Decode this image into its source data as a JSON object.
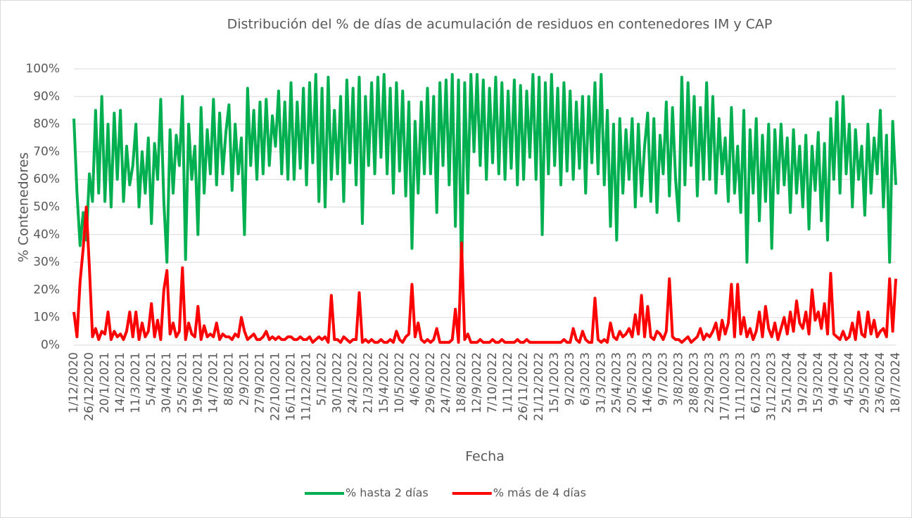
{
  "chart_data": {
    "type": "line",
    "title": "Distribución del % de días de acumulación de residuos en contenedores IM y CAP",
    "x_label": "Fecha",
    "y_label": "% Contenedores",
    "categories": [
      "1/12/2020",
      null,
      null,
      null,
      null,
      "26/12/2020",
      null,
      null,
      null,
      null,
      "20/1/2021",
      null,
      null,
      null,
      null,
      "14/2/2021",
      null,
      null,
      null,
      null,
      "11/3/2021",
      null,
      null,
      null,
      null,
      "5/4/2021",
      null,
      null,
      null,
      null,
      "30/4/2021",
      null,
      null,
      null,
      null,
      "25/5/2021",
      null,
      null,
      null,
      null,
      "19/6/2021",
      null,
      null,
      null,
      null,
      "14/7/2021",
      null,
      null,
      null,
      null,
      "8/8/2021",
      null,
      null,
      null,
      null,
      "2/9/2021",
      null,
      null,
      null,
      null,
      "27/9/2021",
      null,
      null,
      null,
      null,
      "22/10/2021",
      null,
      null,
      null,
      null,
      "16/11/2021",
      null,
      null,
      null,
      null,
      "11/12/2021",
      null,
      null,
      null,
      null,
      "5/1/2022",
      null,
      null,
      null,
      null,
      "30/1/2022",
      null,
      null,
      null,
      null,
      "24/2/2022",
      null,
      null,
      null,
      null,
      "21/3/2022",
      null,
      null,
      null,
      null,
      "15/4/2022",
      null,
      null,
      null,
      null,
      "10/5/2022",
      null,
      null,
      null,
      null,
      "4/6/2022",
      null,
      null,
      null,
      null,
      "29/6/2022",
      null,
      null,
      null,
      null,
      "24/7/2022",
      null,
      null,
      null,
      null,
      "18/8/2022",
      null,
      null,
      null,
      null,
      "12/9/2022",
      null,
      null,
      null,
      null,
      "7/10/2022",
      null,
      null,
      null,
      null,
      "1/11/2022",
      null,
      null,
      null,
      null,
      "26/11/2022",
      null,
      null,
      null,
      null,
      "21/12/2022",
      null,
      null,
      null,
      null,
      "15/1/2023",
      null,
      null,
      null,
      null,
      "9/2/2023",
      null,
      null,
      null,
      null,
      "6/3/2023",
      null,
      null,
      null,
      null,
      "31/3/2023",
      null,
      null,
      null,
      null,
      "25/4/2023",
      null,
      null,
      null,
      null,
      "20/5/2023",
      null,
      null,
      null,
      null,
      "14/6/2023",
      null,
      null,
      null,
      null,
      "9/7/2023",
      null,
      null,
      null,
      null,
      "3/8/2023",
      null,
      null,
      null,
      null,
      "28/8/2023",
      null,
      null,
      null,
      null,
      "22/9/2023",
      null,
      null,
      null,
      null,
      "17/10/2023",
      null,
      null,
      null,
      null,
      "11/11/2023",
      null,
      null,
      null,
      null,
      "6/12/2023",
      null,
      null,
      null,
      null,
      "31/12/2023",
      null,
      null,
      null,
      null,
      "25/1/2024",
      null,
      null,
      null,
      null,
      "19/2/2024",
      null,
      null,
      null,
      null,
      "15/3/2024",
      null,
      null,
      null,
      null,
      "9/4/2024",
      null,
      null,
      null,
      null,
      "4/5/2024",
      null,
      null,
      null,
      null,
      "29/5/2024",
      null,
      null,
      null,
      null,
      "23/6/2024",
      null,
      null,
      null,
      null,
      "18/7/2024"
    ],
    "series": [
      {
        "name": "% hasta 2 días",
        "color": "#00b050",
        "values": [
          82,
          55,
          36,
          48,
          38,
          62,
          52,
          85,
          55,
          90,
          52,
          80,
          50,
          84,
          60,
          85,
          52,
          72,
          58,
          65,
          80,
          50,
          70,
          55,
          75,
          44,
          73,
          60,
          89,
          52,
          30,
          78,
          55,
          76,
          65,
          90,
          31,
          80,
          60,
          72,
          40,
          86,
          55,
          78,
          62,
          89,
          58,
          84,
          62,
          77,
          87,
          56,
          80,
          62,
          75,
          40,
          93,
          65,
          85,
          60,
          88,
          62,
          89,
          65,
          83,
          72,
          92,
          62,
          88,
          60,
          95,
          60,
          88,
          64,
          93,
          58,
          95,
          66,
          98,
          52,
          93,
          50,
          97,
          60,
          85,
          62,
          90,
          52,
          96,
          66,
          93,
          58,
          97,
          44,
          90,
          65,
          95,
          62,
          97,
          68,
          98,
          62,
          93,
          55,
          95,
          63,
          92,
          54,
          88,
          35,
          81,
          55,
          88,
          62,
          93,
          62,
          90,
          48,
          95,
          65,
          96,
          58,
          98,
          43,
          96,
          23,
          95,
          55,
          98,
          70,
          98,
          65,
          96,
          60,
          93,
          66,
          97,
          62,
          95,
          60,
          92,
          64,
          96,
          58,
          94,
          60,
          92,
          68,
          98,
          60,
          97,
          40,
          95,
          62,
          98,
          65,
          93,
          58,
          95,
          63,
          92,
          60,
          88,
          64,
          90,
          55,
          90,
          66,
          95,
          62,
          98,
          58,
          85,
          43,
          80,
          38,
          82,
          55,
          78,
          60,
          82,
          50,
          80,
          54,
          72,
          84,
          52,
          82,
          48,
          76,
          62,
          88,
          54,
          86,
          60,
          45,
          97,
          58,
          95,
          65,
          90,
          54,
          86,
          60,
          95,
          60,
          90,
          55,
          82,
          62,
          75,
          52,
          86,
          55,
          72,
          48,
          85,
          30,
          78,
          55,
          82,
          45,
          76,
          52,
          80,
          35,
          78,
          55,
          80,
          58,
          75,
          48,
          78,
          55,
          72,
          50,
          76,
          42,
          72,
          56,
          77,
          45,
          73,
          38,
          82,
          60,
          88,
          55,
          90,
          62,
          80,
          50,
          78,
          60,
          72,
          47,
          80,
          55,
          75,
          62,
          85,
          50,
          76,
          30,
          81,
          58
        ]
      },
      {
        "name": "% más de 4 días",
        "color": "#ff0000",
        "values": [
          12,
          3,
          23,
          35,
          50,
          28,
          3,
          6,
          2,
          5,
          4,
          12,
          2,
          5,
          3,
          4,
          2,
          5,
          12,
          3,
          12,
          2,
          8,
          3,
          5,
          15,
          3,
          9,
          2,
          20,
          27,
          4,
          8,
          3,
          5,
          28,
          2,
          8,
          4,
          3,
          14,
          2,
          7,
          3,
          4,
          3,
          8,
          2,
          4,
          3,
          3,
          2,
          4,
          3,
          10,
          5,
          2,
          3,
          4,
          2,
          2,
          3,
          5,
          2,
          3,
          2,
          3,
          2,
          2,
          3,
          3,
          2,
          2,
          3,
          2,
          2,
          3,
          1,
          2,
          3,
          2,
          3,
          1,
          18,
          2,
          2,
          1,
          3,
          2,
          1,
          2,
          2,
          19,
          1,
          2,
          1,
          2,
          1,
          1,
          2,
          1,
          1,
          2,
          1,
          5,
          2,
          1,
          3,
          4,
          22,
          3,
          8,
          2,
          1,
          2,
          1,
          2,
          6,
          1,
          1,
          1,
          1,
          2,
          13,
          1,
          37,
          2,
          4,
          1,
          1,
          1,
          2,
          1,
          1,
          1,
          2,
          1,
          1,
          2,
          1,
          1,
          1,
          1,
          2,
          1,
          1,
          2,
          1,
          1,
          1,
          1,
          1,
          1,
          1,
          1,
          1,
          1,
          1,
          2,
          1,
          1,
          6,
          2,
          1,
          5,
          2,
          1,
          1,
          17,
          2,
          1,
          2,
          1,
          8,
          3,
          2,
          5,
          3,
          4,
          6,
          3,
          11,
          4,
          18,
          3,
          14,
          3,
          2,
          5,
          4,
          2,
          5,
          24,
          3,
          2,
          2,
          1,
          2,
          3,
          1,
          2,
          3,
          6,
          2,
          4,
          3,
          5,
          8,
          2,
          9,
          4,
          8,
          22,
          3,
          22,
          4,
          10,
          3,
          6,
          2,
          5,
          12,
          3,
          14,
          6,
          3,
          8,
          2,
          6,
          10,
          4,
          12,
          5,
          16,
          8,
          6,
          12,
          4,
          20,
          9,
          12,
          6,
          15,
          4,
          26,
          4,
          3,
          2,
          5,
          2,
          3,
          8,
          2,
          12,
          4,
          3,
          12,
          4,
          9,
          3,
          5,
          6,
          3,
          24,
          5,
          24
        ]
      }
    ],
    "ylim": [
      0,
      100
    ],
    "yticks": [
      {
        "value": 0,
        "label": "0%"
      },
      {
        "value": 10,
        "label": "10%"
      },
      {
        "value": 20,
        "label": "20%"
      },
      {
        "value": 30,
        "label": "30%"
      },
      {
        "value": 40,
        "label": "40%"
      },
      {
        "value": 50,
        "label": "50%"
      },
      {
        "value": 60,
        "label": "60%"
      },
      {
        "value": 70,
        "label": "70%"
      },
      {
        "value": 80,
        "label": "80%"
      },
      {
        "value": 90,
        "label": "90%"
      },
      {
        "value": 100,
        "label": "100%"
      }
    ],
    "grid": true,
    "legend": "bottom"
  }
}
